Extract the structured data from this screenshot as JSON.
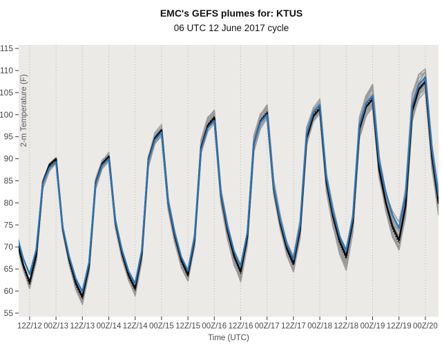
{
  "header": {
    "title": "EMC's GEFS plumes for: KTUS",
    "subtitle": "06 UTC 12 June 2017 cycle"
  },
  "chart_data": {
    "type": "line",
    "title": "EMC's GEFS plumes for: KTUS",
    "subtitle": "06 UTC 12 June 2017 cycle",
    "xlabel": "Time (UTC)",
    "ylabel": "2-m Temperature (F)",
    "xlim": [
      1,
      192
    ],
    "ylim": [
      54.2,
      115.8
    ],
    "grid": "vertical-dotted",
    "legend": "none",
    "y_tick_values": [
      55,
      60,
      65,
      70,
      75,
      80,
      85,
      90,
      95,
      100,
      105,
      110,
      115
    ],
    "x_tick_labels": [
      "12Z/12",
      "00Z/13",
      "12Z/13",
      "00Z/14",
      "12Z/14",
      "00Z/15",
      "12Z/15",
      "00Z/16",
      "12Z/16",
      "00Z/17",
      "12Z/17",
      "00Z/18",
      "12Z/18",
      "00Z/19",
      "12Z/19",
      "00Z/20"
    ],
    "x_tick_start_hour": 6,
    "x_tick_step_hours": 12,
    "series": {
      "time_start_hour": 0,
      "time_step_hours": 3,
      "control_black": [
        72.0,
        66.0,
        62.0,
        68.2,
        84.7,
        88.6,
        90.0,
        74.4,
        67.2,
        61.8,
        58.7,
        65.7,
        84.5,
        88.9,
        90.5,
        75.6,
        68.7,
        63.6,
        60.6,
        68.5,
        89.7,
        94.7,
        96.5,
        80.1,
        72.6,
        67.0,
        63.7,
        71.5,
        92.5,
        97.5,
        99.3,
        81.9,
        73.8,
        67.9,
        64.4,
        72.3,
        93.5,
        98.5,
        100.3,
        83.3,
        75.4,
        69.6,
        66.2,
        73.9,
        94.7,
        99.6,
        101.4,
        84.7,
        76.9,
        71.3,
        67.9,
        75.7,
        96.7,
        101.7,
        103.5,
        87.5,
        80.1,
        74.7,
        71.5,
        79.4,
        100.7,
        105.7,
        107.5,
        90.5,
        80.0
      ],
      "gfs_blue": [
        73.0,
        67.5,
        63.8,
        69.4,
        84.5,
        88.0,
        89.3,
        74.6,
        67.8,
        62.8,
        59.9,
        66.5,
        84.3,
        88.5,
        90.0,
        75.9,
        69.3,
        64.5,
        61.7,
        69.2,
        89.5,
        94.3,
        96.0,
        80.3,
        73.1,
        67.7,
        64.6,
        72.1,
        92.1,
        96.9,
        98.6,
        82.2,
        74.6,
        69.0,
        65.7,
        73.2,
        93.5,
        98.3,
        100.0,
        83.6,
        76.1,
        70.5,
        67.2,
        74.9,
        95.6,
        100.5,
        102.2,
        85.7,
        78.0,
        72.4,
        69.1,
        76.8,
        97.6,
        102.5,
        104.3,
        89.3,
        82.4,
        77.3,
        74.3,
        81.8,
        102.0,
        106.8,
        108.5,
        92.0,
        81.5
      ],
      "ens_mean_dotted": [
        71.5,
        65.6,
        61.4,
        67.6,
        84.2,
        88.2,
        89.6,
        73.9,
        66.7,
        61.3,
        58.2,
        65.3,
        84.2,
        88.7,
        90.3,
        75.3,
        68.3,
        63.2,
        60.2,
        68.1,
        89.4,
        94.5,
        96.3,
        79.8,
        72.2,
        66.6,
        63.3,
        71.3,
        92.7,
        97.8,
        99.6,
        81.8,
        73.6,
        67.6,
        64.0,
        72.1,
        93.6,
        98.8,
        100.6,
        83.2,
        75.2,
        69.3,
        65.8,
        73.7,
        95.0,
        100.0,
        101.8,
        84.6,
        76.6,
        70.8,
        67.3,
        75.4,
        97.0,
        102.2,
        104.0,
        87.4,
        79.8,
        74.1,
        70.8,
        78.9,
        100.8,
        105.9,
        107.8,
        90.0,
        79.5
      ]
    },
    "ensemble": {
      "n_members": 20,
      "spread_base_degF": 0.8,
      "spread_growth_per_hour": 0.011,
      "warm_side_boost_by_index": {
        "50": 0.3,
        "51": 0.5,
        "54": 0.8,
        "55": 1.2,
        "56": 1.5,
        "57": 1.8,
        "58": 2.2,
        "59": 1.8,
        "60": 1.0,
        "61": 0.5,
        "63": 0.5,
        "64": 0.8
      }
    },
    "daily_extremes": {
      "min_12Z_black": [
        62.0,
        58.7,
        60.6,
        63.7,
        64.4,
        66.2,
        67.9,
        71.5
      ],
      "max_00Z_black": [
        90.0,
        90.5,
        96.5,
        99.3,
        100.3,
        101.4,
        103.5,
        107.5
      ]
    },
    "colors": {
      "panel_background": "#ECEAE7",
      "gridline": "#b7b4b0",
      "ensemble_member": "#9a9a9a",
      "control_black": "#0b0b0b",
      "gfs_blue": "#2a76b9",
      "ens_mean_dotted": "#000000",
      "tick_text": "#474747",
      "ylabel_text": "#5e5564"
    }
  }
}
